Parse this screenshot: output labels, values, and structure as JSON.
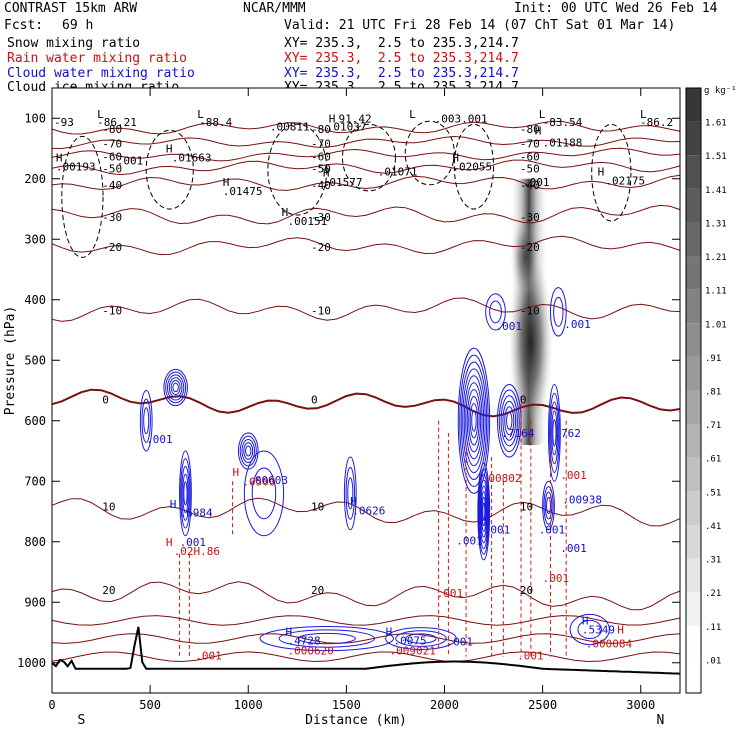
{
  "header": {
    "model": "CONTRAST 15km ARW",
    "org": "NCAR/MMM",
    "init": "Init: 00 UTC Wed 26 Feb 14",
    "fcst_label": "Fcst:",
    "fcst_value": "69 h",
    "valid": "Valid: 21 UTC Fri 28 Feb 14 (07 ChT Sat 01 Mar 14)"
  },
  "fields": [
    {
      "name": "Snow mixing ratio",
      "xy": "XY= 235.3,  2.5 to 235.3,214.7",
      "color": "#000000"
    },
    {
      "name": "Rain water mixing ratio",
      "xy": "XY= 235.3,  2.5 to 235.3,214.7",
      "color": "#cc1010"
    },
    {
      "name": "Cloud water mixing ratio",
      "xy": "XY= 235.3,  2.5 to 235.3,214.7",
      "color": "#1010cc"
    },
    {
      "name": "Cloud ice mixing ratio",
      "xy": "XY= 235.3,  2.5 to 235.3,214.7",
      "color": "#000000"
    }
  ],
  "chart_data": {
    "type": "heatmap",
    "xlabel": "Distance (km)",
    "ylabel": "Pressure (hPa)",
    "xlim": [
      0,
      3200
    ],
    "ylim": [
      1050,
      50
    ],
    "x_ticks": [
      0,
      500,
      1000,
      1500,
      2000,
      2500,
      3000
    ],
    "y_ticks": [
      100,
      200,
      300,
      400,
      500,
      600,
      700,
      800,
      900,
      1000
    ],
    "x_end_labels": {
      "left": "S",
      "right": "N"
    },
    "colorbar": {
      "unit": "g kg⁻¹",
      "levels": [
        1.61,
        1.51,
        1.41,
        1.31,
        1.21,
        1.11,
        1.01,
        0.91,
        0.81,
        0.71,
        0.61,
        0.51,
        0.41,
        0.31,
        0.21,
        0.11,
        0.01
      ],
      "level_labels": [
        "1.61",
        "1.51",
        "1.41",
        "1.31",
        "1.21",
        "1.11",
        "1.01",
        ".91",
        ".81",
        ".71",
        ".61",
        ".51",
        ".41",
        ".31",
        ".21",
        ".11",
        ".01"
      ]
    },
    "temperature_contours": [
      {
        "label": "-80",
        "p": 118
      },
      {
        "label": "-70",
        "p": 142
      },
      {
        "label": "-60",
        "p": 163
      },
      {
        "label": "-50",
        "p": 183
      },
      {
        "label": "-40",
        "p": 210
      },
      {
        "label": "-30",
        "p": 263
      },
      {
        "label": "-20",
        "p": 313
      },
      {
        "label": "-10",
        "p": 418
      },
      {
        "label": "0",
        "p": 565
      },
      {
        "label": "10",
        "p": 742
      },
      {
        "label": "20",
        "p": 880
      }
    ],
    "annotations": [
      {
        "text": "L",
        "x": 230,
        "p": 93,
        "color": "black"
      },
      {
        "text": "-86.21",
        "x": 230,
        "p": 106,
        "color": "black"
      },
      {
        "text": "L",
        "x": 740,
        "p": 93,
        "color": "black"
      },
      {
        "text": "-88.4",
        "x": 750,
        "p": 106,
        "color": "black"
      },
      {
        "text": "L",
        "x": 1820,
        "p": 93,
        "color": "black"
      },
      {
        "text": "L",
        "x": 2480,
        "p": 93,
        "color": "black"
      },
      {
        "text": "-83.54",
        "x": 2500,
        "p": 106,
        "color": "black"
      },
      {
        "text": "L",
        "x": 3000,
        "p": 93,
        "color": "black"
      },
      {
        "text": "-86.2",
        "x": 3000,
        "p": 106,
        "color": "black"
      },
      {
        "text": "-93",
        "x": -30,
        "p": 106,
        "color": "black"
      },
      {
        "text": "H",
        "x": 1410,
        "p": 100,
        "color": "black"
      },
      {
        "text": "91.42",
        "x": 1460,
        "p": 100,
        "color": "black"
      },
      {
        "text": ".00811",
        "x": 1110,
        "p": 114,
        "color": "black"
      },
      {
        "text": ".01037",
        "x": 1400,
        "p": 114,
        "color": "black"
      },
      {
        "text": ".003.001",
        "x": 1950,
        "p": 100,
        "color": "black"
      },
      {
        "text": "H",
        "x": 2460,
        "p": 120,
        "color": "black"
      },
      {
        "text": ".01188",
        "x": 2500,
        "p": 140,
        "color": "black"
      },
      {
        "text": "H",
        "x": 20,
        "p": 165,
        "color": "black"
      },
      {
        "text": ".00193",
        "x": 20,
        "p": 180,
        "color": "black"
      },
      {
        "text": ".001",
        "x": 330,
        "p": 170,
        "color": "black"
      },
      {
        "text": "H",
        "x": 580,
        "p": 150,
        "color": "black"
      },
      {
        "text": ".01663",
        "x": 610,
        "p": 165,
        "color": "black"
      },
      {
        "text": "H",
        "x": 1380,
        "p": 190,
        "color": "black"
      },
      {
        "text": ".01577",
        "x": 1380,
        "p": 205,
        "color": "black"
      },
      {
        "text": ".01071",
        "x": 1660,
        "p": 188,
        "color": "black"
      },
      {
        "text": "H",
        "x": 2040,
        "p": 165,
        "color": "black"
      },
      {
        "text": ".02055",
        "x": 2040,
        "p": 180,
        "color": "black"
      },
      {
        "text": ".001",
        "x": 2400,
        "p": 205,
        "color": "black"
      },
      {
        "text": "H",
        "x": 2780,
        "p": 188,
        "color": "black"
      },
      {
        "text": ".02175",
        "x": 2820,
        "p": 203,
        "color": "black"
      },
      {
        "text": "H",
        "x": 870,
        "p": 205,
        "color": "black"
      },
      {
        "text": ".01475",
        "x": 870,
        "p": 220,
        "color": "black"
      },
      {
        "text": "H",
        "x": 1170,
        "p": 255,
        "color": "black"
      },
      {
        "text": ".00151",
        "x": 1200,
        "p": 270,
        "color": "black"
      },
      {
        "text": ".001",
        "x": 2260,
        "p": 443,
        "color": "blue"
      },
      {
        "text": ".001",
        "x": 2610,
        "p": 440,
        "color": "blue"
      },
      {
        "text": ".001",
        "x": 480,
        "p": 630,
        "color": "blue"
      },
      {
        "text": "H",
        "x": 920,
        "p": 685,
        "color": "red"
      },
      {
        "text": ".0500",
        "x": 970,
        "p": 700,
        "color": "red"
      },
      {
        "text": ".00603",
        "x": 1000,
        "p": 698,
        "color": "blue"
      },
      {
        "text": "H",
        "x": 600,
        "p": 738,
        "color": "blue"
      },
      {
        "text": ".6984",
        "x": 650,
        "p": 752,
        "color": "blue"
      },
      {
        "text": ".001",
        "x": 650,
        "p": 800,
        "color": "blue"
      },
      {
        "text": "H",
        "x": 580,
        "p": 800,
        "color": "red"
      },
      {
        "text": ".02H.86",
        "x": 620,
        "p": 815,
        "color": "red"
      },
      {
        "text": "H",
        "x": 1520,
        "p": 733,
        "color": "blue"
      },
      {
        "text": ".0626",
        "x": 1530,
        "p": 748,
        "color": "blue"
      },
      {
        "text": ".7164",
        "x": 2290,
        "p": 620,
        "color": "blue"
      },
      {
        "text": ".762",
        "x": 2560,
        "p": 620,
        "color": "blue"
      },
      {
        "text": ".00802",
        "x": 2190,
        "p": 695,
        "color": "red"
      },
      {
        "text": ".001",
        "x": 2200,
        "p": 780,
        "color": "blue"
      },
      {
        "text": ".001",
        "x": 2060,
        "p": 798,
        "color": "blue"
      },
      {
        "text": ".001",
        "x": 2480,
        "p": 780,
        "color": "blue"
      },
      {
        "text": ".001",
        "x": 2590,
        "p": 690,
        "color": "red"
      },
      {
        "text": ".00938",
        "x": 2600,
        "p": 730,
        "color": "blue"
      },
      {
        "text": ".001",
        "x": 2590,
        "p": 810,
        "color": "blue"
      },
      {
        "text": ".001",
        "x": 1960,
        "p": 885,
        "color": "red"
      },
      {
        "text": ".001",
        "x": 2500,
        "p": 860,
        "color": "red"
      },
      {
        "text": ".001",
        "x": 2010,
        "p": 965,
        "color": "blue"
      },
      {
        "text": "H",
        "x": 1190,
        "p": 948,
        "color": "blue"
      },
      {
        "text": ".4728",
        "x": 1200,
        "p": 963,
        "color": "blue"
      },
      {
        "text": ".000620",
        "x": 1200,
        "p": 980,
        "color": "red"
      },
      {
        "text": "H",
        "x": 1700,
        "p": 948,
        "color": "blue"
      },
      {
        "text": ".0075",
        "x": 1740,
        "p": 963,
        "color": "blue"
      },
      {
        "text": ".009021",
        "x": 1720,
        "p": 980,
        "color": "red"
      },
      {
        "text": "H",
        "x": 2700,
        "p": 930,
        "color": "blue"
      },
      {
        "text": ".5349",
        "x": 2700,
        "p": 945,
        "color": "blue"
      },
      {
        "text": ".000084",
        "x": 2720,
        "p": 968,
        "color": "red"
      },
      {
        "text": ".001",
        "x": 730,
        "p": 988,
        "color": "red"
      },
      {
        "text": ".001",
        "x": 2370,
        "p": 988,
        "color": "red"
      },
      {
        "text": "H",
        "x": 2880,
        "p": 945,
        "color": "red"
      }
    ]
  }
}
